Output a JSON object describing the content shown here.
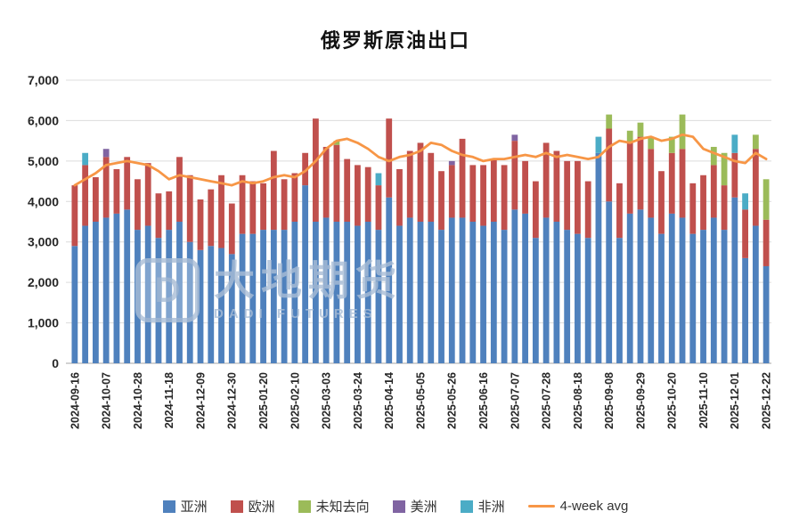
{
  "title": "俄罗斯原油出口",
  "watermark": {
    "logo_text": "D",
    "name_cn": "大地期货",
    "name_en": "DADI FUTURES"
  },
  "chart_data": {
    "type": "bar",
    "stacked": true,
    "title": "俄罗斯原油出口",
    "xlabel": "",
    "ylabel": "",
    "ylim": [
      0,
      7000
    ],
    "y_ticks": [
      0,
      1000,
      2000,
      3000,
      4000,
      5000,
      6000,
      7000
    ],
    "grid": true,
    "legend_position": "bottom",
    "x_tick_every": 3,
    "categories": [
      "2024-09-16",
      "2024-09-23",
      "2024-09-30",
      "2024-10-07",
      "2024-10-14",
      "2024-10-21",
      "2024-10-28",
      "2024-11-04",
      "2024-11-11",
      "2024-11-18",
      "2024-11-25",
      "2024-12-02",
      "2024-12-09",
      "2024-12-16",
      "2024-12-23",
      "2024-12-30",
      "2025-01-06",
      "2025-01-13",
      "2025-01-20",
      "2025-01-27",
      "2025-02-03",
      "2025-02-10",
      "2025-02-17",
      "2025-02-24",
      "2025-03-03",
      "2025-03-10",
      "2025-03-17",
      "2025-03-24",
      "2025-03-31",
      "2025-04-07",
      "2025-04-14",
      "2025-04-21",
      "2025-04-28",
      "2025-05-05",
      "2025-05-12",
      "2025-05-19",
      "2025-05-26",
      "2025-06-02",
      "2025-06-09",
      "2025-06-16",
      "2025-06-23",
      "2025-06-30",
      "2025-07-07",
      "2025-07-14",
      "2025-07-21",
      "2025-07-28",
      "2025-08-04",
      "2025-08-11",
      "2025-08-18",
      "2025-08-25",
      "2025-09-01",
      "2025-09-08",
      "2025-09-15",
      "2025-09-22",
      "2025-09-29",
      "2025-10-06",
      "2025-10-13",
      "2025-10-20",
      "2025-10-27",
      "2025-11-03",
      "2025-11-10",
      "2025-11-17",
      "2025-11-24",
      "2025-12-01",
      "2025-12-08",
      "2025-12-15",
      "2025-12-22"
    ],
    "series": [
      {
        "name": "亚洲",
        "color": "#4f81bd",
        "values": [
          2900,
          3400,
          3500,
          3600,
          3700,
          3800,
          3300,
          3400,
          3100,
          3300,
          3500,
          3000,
          2800,
          2900,
          2850,
          2700,
          3200,
          3200,
          3300,
          3300,
          3300,
          3500,
          4400,
          3500,
          3600,
          3500,
          3500,
          3400,
          3500,
          3300,
          4100,
          3400,
          3600,
          3500,
          3500,
          3300,
          3600,
          3600,
          3500,
          3400,
          3500,
          3300,
          3800,
          3700,
          3100,
          3600,
          3500,
          3300,
          3200,
          3100,
          5200,
          4000,
          3100,
          3700,
          3800,
          3600,
          3200,
          3700,
          3600,
          3200,
          3300,
          3600,
          3300,
          4100,
          2600,
          3400,
          2400
        ]
      },
      {
        "name": "欧洲",
        "color": "#c0504d",
        "values": [
          1500,
          1500,
          1100,
          1500,
          1100,
          1300,
          1250,
          1550,
          1100,
          950,
          1600,
          1650,
          1250,
          1400,
          1800,
          1250,
          1450,
          1300,
          1150,
          1950,
          1250,
          1200,
          800,
          2550,
          1750,
          1900,
          1550,
          1500,
          1350,
          1100,
          1950,
          1400,
          1650,
          1950,
          1700,
          1450,
          1300,
          1950,
          1400,
          1500,
          1550,
          1600,
          1700,
          1300,
          1400,
          1850,
          1750,
          1700,
          1800,
          1400,
          0,
          1800,
          1350,
          1750,
          1800,
          1700,
          1550,
          1500,
          1700,
          1250,
          1350,
          1300,
          1100,
          1100,
          1200,
          1900,
          1150
        ]
      },
      {
        "name": "未知去向",
        "color": "#9bbb59",
        "values": [
          0,
          0,
          0,
          0,
          0,
          0,
          0,
          0,
          0,
          0,
          0,
          0,
          0,
          0,
          0,
          0,
          0,
          0,
          0,
          0,
          0,
          0,
          0,
          0,
          0,
          100,
          0,
          0,
          0,
          0,
          0,
          0,
          0,
          0,
          0,
          0,
          0,
          0,
          0,
          0,
          0,
          0,
          0,
          0,
          0,
          0,
          0,
          0,
          0,
          0,
          0,
          350,
          0,
          300,
          350,
          300,
          0,
          400,
          850,
          0,
          0,
          450,
          800,
          0,
          0,
          350,
          1000
        ]
      },
      {
        "name": "美洲",
        "color": "#8064a2",
        "values": [
          0,
          0,
          0,
          200,
          0,
          0,
          0,
          0,
          0,
          0,
          0,
          0,
          0,
          0,
          0,
          0,
          0,
          0,
          0,
          0,
          0,
          0,
          0,
          0,
          0,
          0,
          0,
          0,
          0,
          0,
          0,
          0,
          0,
          0,
          0,
          0,
          100,
          0,
          0,
          0,
          0,
          0,
          150,
          0,
          0,
          0,
          0,
          0,
          0,
          0,
          0,
          0,
          0,
          0,
          0,
          0,
          0,
          0,
          0,
          0,
          0,
          0,
          0,
          0,
          0,
          0,
          0
        ]
      },
      {
        "name": "非洲",
        "color": "#4bacc6",
        "values": [
          0,
          300,
          0,
          0,
          0,
          0,
          0,
          0,
          0,
          0,
          0,
          0,
          0,
          0,
          0,
          0,
          0,
          0,
          0,
          0,
          0,
          0,
          0,
          0,
          0,
          0,
          0,
          0,
          0,
          300,
          0,
          0,
          0,
          0,
          0,
          0,
          0,
          0,
          0,
          0,
          0,
          0,
          0,
          0,
          0,
          0,
          0,
          0,
          0,
          0,
          400,
          0,
          0,
          0,
          0,
          0,
          0,
          0,
          0,
          0,
          0,
          0,
          0,
          450,
          400,
          0,
          0
        ]
      }
    ],
    "line_series": {
      "name": "4-week avg",
      "color": "#f79646",
      "values": [
        4400,
        4550,
        4700,
        4900,
        4950,
        5000,
        4950,
        4900,
        4750,
        4550,
        4650,
        4600,
        4550,
        4500,
        4450,
        4400,
        4500,
        4450,
        4500,
        4600,
        4650,
        4600,
        4750,
        5000,
        5300,
        5500,
        5550,
        5450,
        5300,
        5100,
        5000,
        5100,
        5150,
        5250,
        5450,
        5400,
        5250,
        5150,
        5100,
        5000,
        5050,
        5050,
        5100,
        5150,
        5100,
        5200,
        5100,
        5150,
        5100,
        5050,
        5100,
        5350,
        5500,
        5450,
        5550,
        5600,
        5500,
        5550,
        5650,
        5600,
        5300,
        5200,
        5100,
        5000,
        4950,
        5200,
        5050
      ]
    },
    "style": {
      "grid_color": "#dcdcdc",
      "axis_color": "#a6a6a6",
      "tick_label_color": "#262626"
    }
  }
}
